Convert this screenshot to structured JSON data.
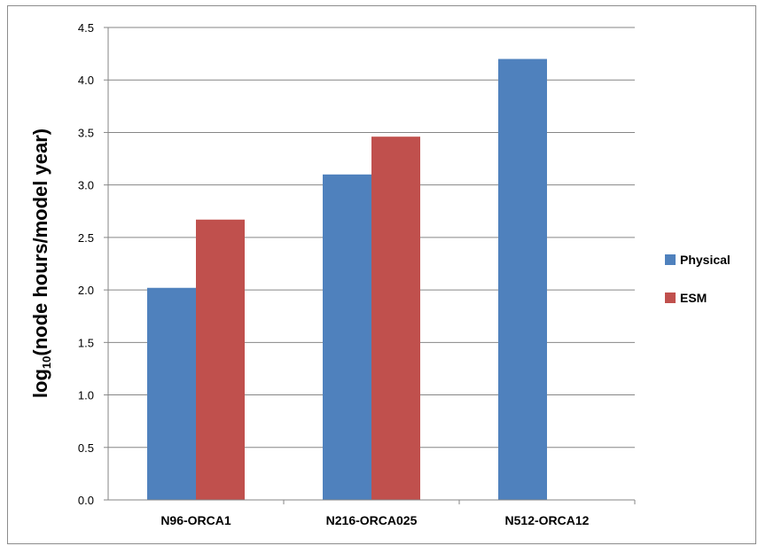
{
  "chart_data": {
    "type": "bar",
    "title": "",
    "xlabel": "",
    "ylabel": {
      "prefix": "log",
      "subscript": "10",
      "suffix": "(node hours/model year)"
    },
    "categories": [
      "N96-ORCA1",
      "N216-ORCA025",
      "N512-ORCA12"
    ],
    "series": [
      {
        "name": "Physical",
        "color": "#4f81bd",
        "values": [
          2.02,
          3.1,
          4.2
        ]
      },
      {
        "name": "ESM",
        "color": "#c0504d",
        "values": [
          2.67,
          3.46,
          null
        ]
      }
    ],
    "ylim": [
      0,
      4.5
    ],
    "yticks": [
      "0.0",
      "0.5",
      "1.0",
      "1.5",
      "2.0",
      "2.5",
      "3.0",
      "3.5",
      "4.0",
      "4.5"
    ],
    "grid": true,
    "legend_position": "right"
  }
}
